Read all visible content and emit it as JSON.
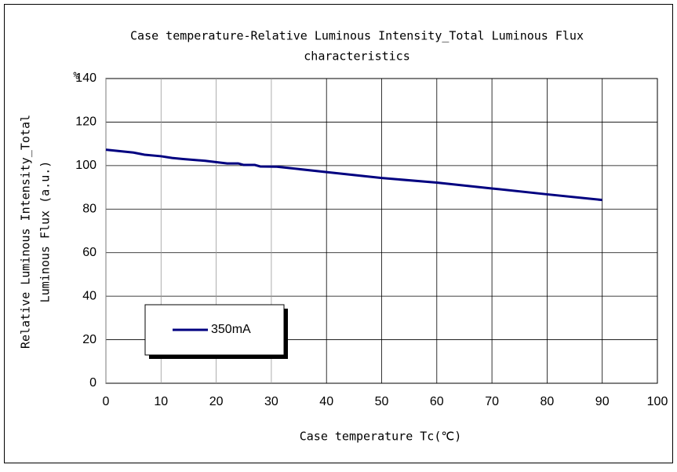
{
  "chart_data": {
    "type": "line",
    "title": [
      "Case temperature-Relative Luminous Intensity_Total Luminous Flux",
      "characteristics"
    ],
    "y_unit": "%",
    "x_label": "Case temperature  Tc(℃)",
    "y_label": [
      "Relative Luminous Intensity_Total",
      "Luminous Flux (a.u.)"
    ],
    "x": [
      0,
      5,
      7,
      10,
      12,
      14,
      18,
      22,
      24,
      25,
      27,
      28,
      31,
      40,
      50,
      60,
      70,
      80,
      90
    ],
    "series": [
      {
        "name": "350mA",
        "color": "#000080",
        "values": [
          107.3,
          106,
          105,
          104.3,
          103.5,
          103,
          102.2,
          101,
          101,
          100.3,
          100.3,
          99.6,
          99.5,
          97,
          94.3,
          92.2,
          89.5,
          86.8,
          84.2
        ]
      }
    ],
    "xlim": [
      0,
      100
    ],
    "xticks": [
      0,
      10,
      20,
      30,
      40,
      50,
      60,
      70,
      80,
      90,
      100
    ],
    "ylim": [
      0,
      140
    ],
    "yticks": [
      0,
      20,
      40,
      60,
      80,
      100,
      120,
      140
    ],
    "grid": true,
    "legend": "lower left"
  }
}
